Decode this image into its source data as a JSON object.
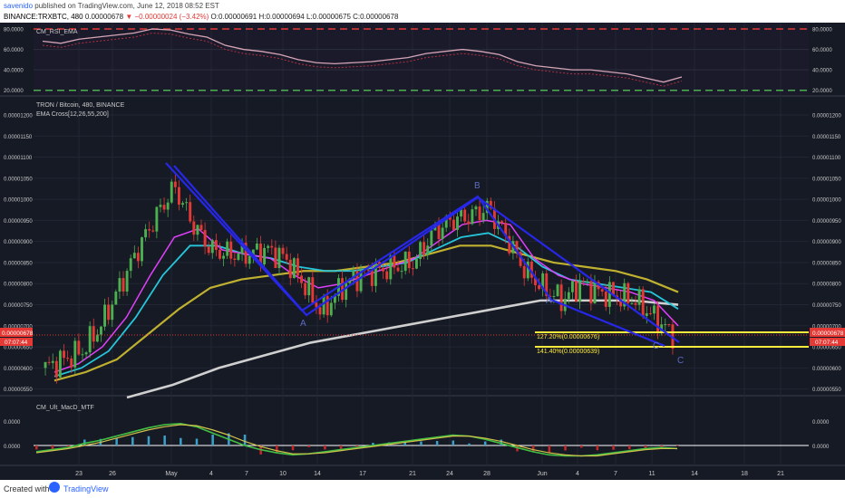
{
  "header": {
    "publisher": "savenido",
    "published_text": "published on TradingView.com, June 12, 2018 08:52 EST",
    "symbol": "BINANCE:TRXBTC, 480",
    "last": "0.00000678",
    "change": "−0.00000024 (−3.42%)",
    "ohlc": "O:0.00000691 H:0.00000694 L:0.00000675 C:0.00000678"
  },
  "footer": {
    "created_with": "Created with",
    "brand": "TradingView"
  },
  "panes": {
    "rsi": {
      "title": "CM_RSI_EMA",
      "ticks": [
        "80.0000",
        "60.0000",
        "40.0000",
        "20.0000"
      ],
      "ticks_right": [
        "80.0000",
        "60.0000",
        "40.0000",
        "20.0000"
      ]
    },
    "main": {
      "title": "TRON / Bitcoin, 480, BINANCE",
      "subtitle": "EMA Cross[12,26,55,200]",
      "ticks": [
        "0.00001200",
        "0.00001150",
        "0.00001100",
        "0.00001050",
        "0.00001000",
        "0.00000950",
        "0.00000900",
        "0.00000850",
        "0.00000800",
        "0.00000750",
        "0.00000700",
        "0.00000650",
        "0.00000600",
        "0.00000550"
      ],
      "ticks_right": [
        "0.00001200",
        "0.00001150",
        "0.00001100",
        "0.00001050",
        "0.00001000",
        "0.00000950",
        "0.00000900",
        "0.00000850",
        "0.00000800",
        "0.00000750",
        "0.00000700",
        "0.00000650",
        "0.00000600",
        "0.00000550"
      ],
      "price_badge": "0.00000678",
      "countdown": "07:07:44",
      "fib1": "127.20%(0.00000676)",
      "fib2": "141.40%(0.00000639)",
      "wave_labels": [
        "A",
        "B",
        "A",
        "C",
        "C"
      ]
    },
    "macd": {
      "title": "CM_Ult_MacD_MTF",
      "ticks": [
        "0.0000",
        "0.0000"
      ],
      "ticks_right": [
        "0.0000",
        "0.0000"
      ]
    }
  },
  "x_axis": [
    "23",
    "26",
    "May",
    "4",
    "7",
    "10",
    "14",
    "17",
    "21",
    "24",
    "28",
    "Jun",
    "4",
    "7",
    "11",
    "14",
    "18",
    "21"
  ],
  "chart_data": {
    "type": "candlestick",
    "symbol": "TRXBTC",
    "exchange": "BINANCE",
    "interval": "480",
    "ylim": [
      5.3e-06,
      1.22e-05
    ],
    "colors": {
      "up": "#4caf50",
      "down": "#e53935",
      "ema12": "#e040fb",
      "ema26": "#26c6da",
      "ema55": "#c0b030",
      "ema200": "#cfcfcf",
      "pattern": "#2727e8",
      "fib": "#ffeb3b"
    },
    "close_series": [
      6e-06,
      6.2e-06,
      6.4e-06,
      7e-06,
      7.9e-06,
      8.8e-06,
      9.6e-06,
      1.03e-05,
      9.4e-06,
      8.8e-06,
      8.7e-06,
      8.7e-06,
      8.8e-06,
      8.6e-06,
      8e-06,
      7.3e-06,
      7.9e-06,
      8.2e-06,
      8.3e-06,
      8.4e-06,
      8.5e-06,
      9.2e-06,
      9.5e-06,
      9.6e-06,
      9.8e-06,
      9.1e-06,
      8.3e-06,
      7.9e-06,
      7.6e-06,
      8e-06,
      7.8e-06,
      7.7e-06,
      7.6e-06,
      7.2e-06,
      6.78e-06
    ],
    "ema_series": {
      "ema12": [
        5.9e-06,
        6.1e-06,
        6.5e-06,
        7.2e-06,
        8.2e-06,
        9.1e-06,
        9.3e-06,
        8.8e-06,
        8.7e-06,
        8.6e-06,
        8.2e-06,
        7.9e-06,
        8e-06,
        8.2e-06,
        8.4e-06,
        8.6e-06,
        9e-06,
        9.4e-06,
        9.5e-06,
        9.4e-06,
        8.6e-06,
        8.2e-06,
        8e-06,
        7.9e-06,
        7.8e-06,
        7.6e-06,
        7e-06
      ],
      "ema26": [
        5.8e-06,
        6e-06,
        6.4e-06,
        7.2e-06,
        8.2e-06,
        8.9e-06,
        8.9e-06,
        8.7e-06,
        8.6e-06,
        8.4e-06,
        8.3e-06,
        8.3e-06,
        8.4e-06,
        8.5e-06,
        8.8e-06,
        9.1e-06,
        9.2e-06,
        8.9e-06,
        8.4e-06,
        8.1e-06,
        8e-06,
        7.9e-06,
        7.8e-06,
        7.4e-06
      ],
      "ema55": [
        5.7e-06,
        5.9e-06,
        6.2e-06,
        6.8e-06,
        7.4e-06,
        7.9e-06,
        8.1e-06,
        8.2e-06,
        8.3e-06,
        8.3e-06,
        8.4e-06,
        8.5e-06,
        8.7e-06,
        8.9e-06,
        8.9e-06,
        8.7e-06,
        8.5e-06,
        8.4e-06,
        8.3e-06,
        8.1e-06,
        7.8e-06
      ],
      "ema200": [
        5.3e-06,
        5.6e-06,
        6e-06,
        6.3e-06,
        6.6e-06,
        6.8e-06,
        7e-06,
        7.2e-06,
        7.4e-06,
        7.6e-06,
        7.6e-06,
        7.6e-06,
        7.5e-06
      ]
    },
    "rsi_levels": [
      80,
      20
    ],
    "fib_levels": [
      6.76e-06,
      6.39e-06
    ]
  }
}
